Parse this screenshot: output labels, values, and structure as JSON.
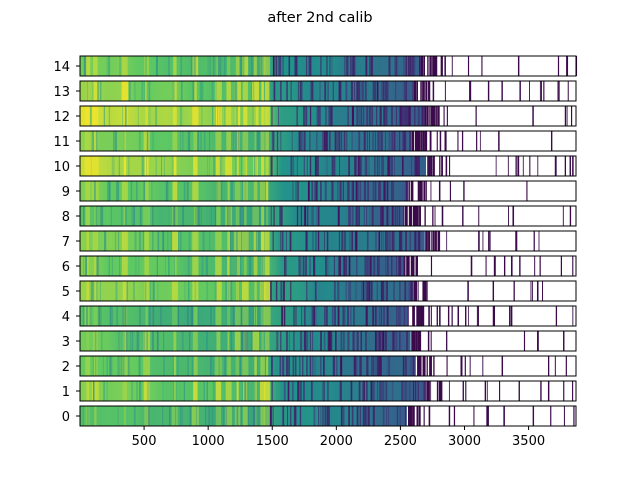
{
  "chart_data": {
    "type": "heatmap",
    "title": "after 2nd calib",
    "xlabel": "",
    "ylabel": "",
    "xlim": [
      0,
      3870
    ],
    "x_ticks": [
      500,
      1000,
      1500,
      2000,
      2500,
      3000,
      3500
    ],
    "rows": [
      0,
      1,
      2,
      3,
      4,
      5,
      6,
      7,
      8,
      9,
      10,
      11,
      12,
      13,
      14
    ],
    "colormap": [
      "#440154",
      "#3b528b",
      "#21918c",
      "#5ec962",
      "#fde725"
    ],
    "bright_lines": [
      60,
      120,
      350,
      520,
      740,
      900,
      1080,
      1160,
      1230,
      1290,
      1370,
      1425,
      1460
    ],
    "strip_extent": [
      2550,
      2700,
      2620,
      2580,
      2560,
      2600,
      2530,
      2690,
      2520,
      2560,
      2700,
      2580,
      2690,
      2600,
      2660
    ],
    "peak_level": [
      0.74,
      0.82,
      0.78,
      0.76,
      0.72,
      0.86,
      0.8,
      0.82,
      0.74,
      0.8,
      0.92,
      0.8,
      0.94,
      0.84,
      0.8
    ],
    "grid": false,
    "legend": "none"
  }
}
